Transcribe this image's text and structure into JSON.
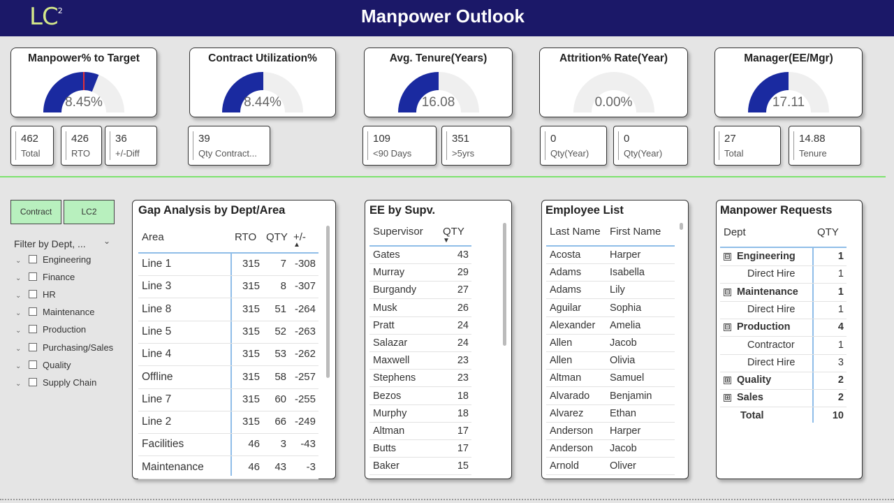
{
  "header": {
    "logo": "LC",
    "logo_sup": "2",
    "title": "Manpower Outlook"
  },
  "gauges": [
    {
      "title": "Manpower% to Target",
      "value": "8.45%",
      "fill": 0.62,
      "target": 0.5
    },
    {
      "title": "Contract Utilization%",
      "value": "8.44%",
      "fill": 0.5,
      "target": 0.5
    },
    {
      "title": "Avg. Tenure(Years)",
      "value": "16.08",
      "fill": 0.5
    },
    {
      "title": "Attrition% Rate(Year)",
      "value": "0.00%",
      "fill": 0
    },
    {
      "title": "Manager(EE/Mgr)",
      "value": "17.11",
      "fill": 0.5
    }
  ],
  "stats": [
    {
      "value": "462",
      "label": "Total"
    },
    {
      "value": "426",
      "label": "RTO"
    },
    {
      "value": "36",
      "label": "+/-Diff"
    },
    {
      "value": "39",
      "label": "Qty Contract..."
    },
    {
      "value": "109",
      "label": "<90 Days"
    },
    {
      "value": "351",
      "label": ">5yrs"
    },
    {
      "value": "0",
      "label": "Qty(Year)"
    },
    {
      "value": "0",
      "label": "Qty(Year)"
    },
    {
      "value": "27",
      "label": "Total"
    },
    {
      "value": "14.88",
      "label": "Tenure"
    }
  ],
  "slicer": {
    "buttons": [
      "Contract",
      "LC2"
    ],
    "title": "Filter by Dept, ...",
    "items": [
      "Engineering",
      "Finance",
      "HR",
      "Maintenance",
      "Production",
      "Purchasing/Sales",
      "Quality",
      "Supply Chain"
    ]
  },
  "gap": {
    "title": "Gap Analysis by Dept/Area",
    "headers": [
      "Area",
      "RTO",
      "QTY",
      "+/-"
    ],
    "rows": [
      [
        "Line 1",
        "315",
        "7",
        "-308"
      ],
      [
        "Line 3",
        "315",
        "8",
        "-307"
      ],
      [
        "Line 8",
        "315",
        "51",
        "-264"
      ],
      [
        "Line 5",
        "315",
        "52",
        "-263"
      ],
      [
        "Line 4",
        "315",
        "53",
        "-262"
      ],
      [
        "Offline",
        "315",
        "58",
        "-257"
      ],
      [
        "Line 7",
        "315",
        "60",
        "-255"
      ],
      [
        "Line 2",
        "315",
        "66",
        "-249"
      ],
      [
        "Facilities",
        "46",
        "3",
        "-43"
      ],
      [
        "Maintenance",
        "46",
        "43",
        "-3"
      ]
    ]
  },
  "ee": {
    "title": "EE by Supv.",
    "headers": [
      "Supervisor",
      "QTY"
    ],
    "rows": [
      [
        "Gates",
        "43"
      ],
      [
        "Murray",
        "29"
      ],
      [
        "Burgandy",
        "27"
      ],
      [
        "Musk",
        "26"
      ],
      [
        "Pratt",
        "24"
      ],
      [
        "Salazar",
        "24"
      ],
      [
        "Maxwell",
        "23"
      ],
      [
        "Stephens",
        "23"
      ],
      [
        "Bezos",
        "18"
      ],
      [
        "Murphy",
        "18"
      ],
      [
        "Altman",
        "17"
      ],
      [
        "Butts",
        "17"
      ],
      [
        "Baker",
        "15"
      ]
    ]
  },
  "employees": {
    "title": "Employee List",
    "headers": [
      "Last Name",
      "First Name"
    ],
    "rows": [
      [
        "Acosta",
        "Harper"
      ],
      [
        "Adams",
        "Isabella"
      ],
      [
        "Adams",
        "Lily"
      ],
      [
        "Aguilar",
        "Sophia"
      ],
      [
        "Alexander",
        "Amelia"
      ],
      [
        "Allen",
        "Jacob"
      ],
      [
        "Allen",
        "Olivia"
      ],
      [
        "Altman",
        "Samuel"
      ],
      [
        "Alvarado",
        "Benjamin"
      ],
      [
        "Alvarez",
        "Ethan"
      ],
      [
        "Anderson",
        "Harper"
      ],
      [
        "Anderson",
        "Jacob"
      ],
      [
        "Arnold",
        "Oliver"
      ]
    ]
  },
  "requests": {
    "title": "Manpower Requests",
    "headers": [
      "Dept",
      "QTY"
    ],
    "rows": [
      {
        "label": "Engineering",
        "qty": "1",
        "level": 0,
        "icon": "⊟"
      },
      {
        "label": "Direct Hire",
        "qty": "1",
        "level": 1
      },
      {
        "label": "Maintenance",
        "qty": "1",
        "level": 0,
        "icon": "⊟"
      },
      {
        "label": "Direct Hire",
        "qty": "1",
        "level": 1
      },
      {
        "label": "Production",
        "qty": "4",
        "level": 0,
        "icon": "⊟"
      },
      {
        "label": "Contractor",
        "qty": "1",
        "level": 1
      },
      {
        "label": "Direct Hire",
        "qty": "3",
        "level": 1
      },
      {
        "label": "Quality",
        "qty": "2",
        "level": 0,
        "icon": "⊞"
      },
      {
        "label": "Sales",
        "qty": "2",
        "level": 0,
        "icon": "⊞"
      },
      {
        "label": "Total",
        "qty": "10",
        "level": 0
      }
    ]
  },
  "colors": {
    "header": "#1b1868",
    "gauge_fill": "#1a2aa0",
    "gauge_bg": "#efefef",
    "target": "#e0303a",
    "slicer_button": "#b8f0be",
    "divider": "#7de36e"
  }
}
